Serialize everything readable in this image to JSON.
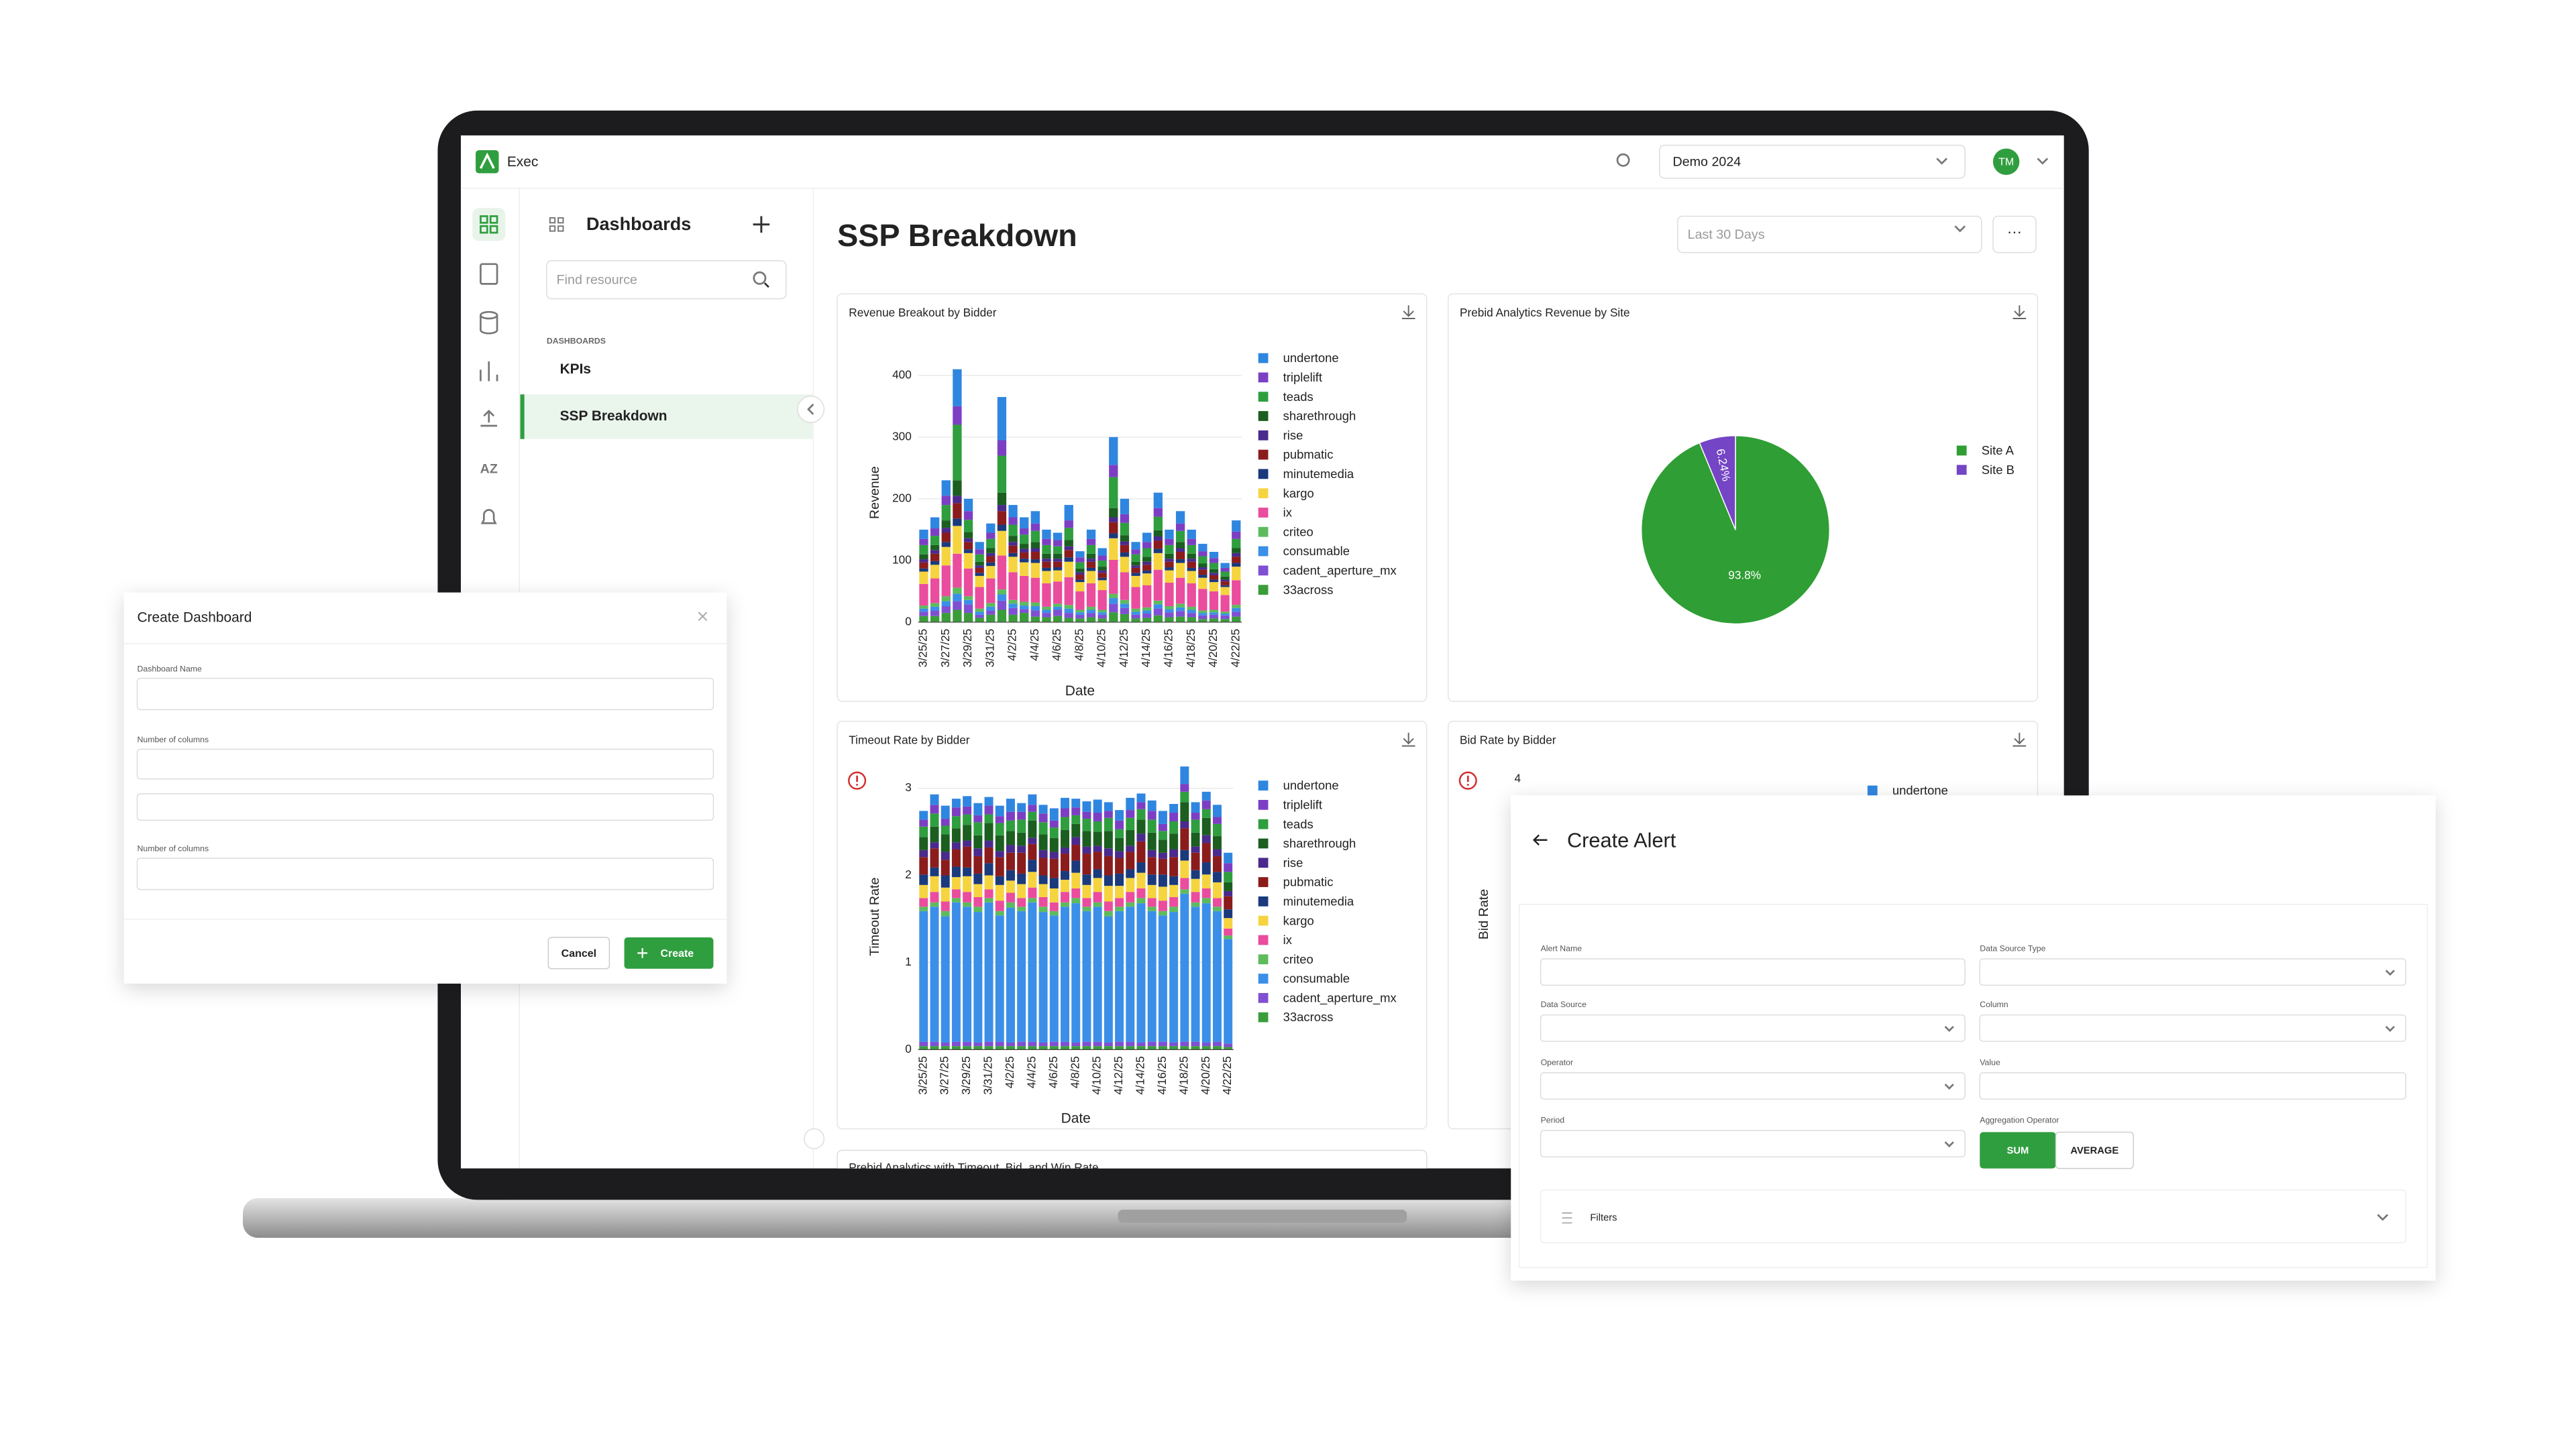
{
  "app": {
    "name": "Exec",
    "workspace": "Demo 2024",
    "avatar": "TM"
  },
  "sidebar": {
    "title": "Dashboards",
    "search_placeholder": "Find resource",
    "section": "DASHBOARDS",
    "items": [
      "KPIs",
      "SSP Breakdown"
    ],
    "rail_label": "AZ"
  },
  "page": {
    "title": "SSP Breakdown",
    "date_range": "Last 30 Days",
    "menu": "···",
    "next_card": "Prebid Analytics with Timeout, Bid, and Win Rate"
  },
  "chart_data": [
    {
      "type": "bar",
      "stacked": true,
      "title": "Revenue Breakout by Bidder",
      "x_label": "Date",
      "y_label": "Revenue",
      "categories": [
        "3/25/25",
        null,
        "3/27/25",
        null,
        "3/29/25",
        null,
        "3/31/25",
        null,
        "4/2/25",
        null,
        "4/4/25",
        null,
        "4/6/25",
        null,
        "4/8/25",
        null,
        "4/10/25",
        null,
        "4/12/25",
        null,
        "4/14/25",
        null,
        "4/16/25",
        null,
        "4/18/25",
        null,
        "4/20/25",
        null,
        "4/22/25"
      ],
      "ylim": [
        0,
        420
      ],
      "yticks": [
        0,
        100,
        200,
        300,
        400
      ],
      "grid": true,
      "series": [
        {
          "name": "undertone",
          "color": "#2f86e0",
          "values": [
            15,
            18,
            25,
            60,
            20,
            12,
            15,
            70,
            20,
            18,
            20,
            15,
            12,
            25,
            10,
            15,
            12,
            45,
            25,
            12,
            15,
            25,
            15,
            20,
            15,
            12,
            10,
            8,
            18
          ]
        },
        {
          "name": "triplelift",
          "color": "#7c3fc4",
          "values": [
            10,
            12,
            15,
            30,
            14,
            8,
            10,
            25,
            12,
            10,
            12,
            10,
            10,
            12,
            8,
            10,
            8,
            20,
            14,
            8,
            10,
            14,
            10,
            12,
            10,
            8,
            8,
            6,
            12
          ]
        },
        {
          "name": "teads",
          "color": "#2f9e3f",
          "values": [
            15,
            15,
            25,
            90,
            20,
            12,
            15,
            60,
            18,
            15,
            18,
            14,
            12,
            20,
            10,
            14,
            10,
            50,
            20,
            12,
            14,
            22,
            14,
            18,
            14,
            12,
            10,
            8,
            15
          ]
        },
        {
          "name": "sharethrough",
          "color": "#1b5e20",
          "values": [
            8,
            8,
            12,
            25,
            10,
            6,
            8,
            20,
            10,
            8,
            10,
            8,
            8,
            10,
            6,
            8,
            6,
            15,
            10,
            6,
            8,
            10,
            8,
            10,
            8,
            6,
            6,
            5,
            8
          ]
        },
        {
          "name": "rise",
          "color": "#4a2a8c",
          "values": [
            5,
            6,
            8,
            12,
            6,
            4,
            5,
            10,
            6,
            6,
            6,
            5,
            5,
            6,
            4,
            5,
            4,
            8,
            6,
            4,
            5,
            7,
            5,
            6,
            5,
            4,
            4,
            3,
            6
          ]
        },
        {
          "name": "pubmatic",
          "color": "#8b1c1c",
          "values": [
            10,
            12,
            15,
            25,
            12,
            8,
            10,
            22,
            12,
            10,
            12,
            10,
            9,
            12,
            8,
            10,
            8,
            18,
            12,
            8,
            9,
            13,
            9,
            12,
            10,
            8,
            7,
            6,
            10
          ]
        },
        {
          "name": "minutemedia",
          "color": "#1a3a7c",
          "values": [
            5,
            6,
            8,
            12,
            6,
            5,
            6,
            10,
            6,
            6,
            6,
            5,
            5,
            7,
            4,
            5,
            4,
            8,
            7,
            5,
            5,
            7,
            5,
            6,
            5,
            5,
            4,
            3,
            6
          ]
        },
        {
          "name": "kargo",
          "color": "#f6d43f",
          "values": [
            20,
            22,
            30,
            45,
            25,
            18,
            20,
            40,
            25,
            22,
            24,
            20,
            18,
            25,
            15,
            20,
            16,
            35,
            25,
            18,
            19,
            27,
            20,
            24,
            20,
            18,
            15,
            13,
            22
          ]
        },
        {
          "name": "ix",
          "color": "#ea4c9e",
          "values": [
            35,
            40,
            50,
            55,
            45,
            35,
            40,
            55,
            45,
            42,
            40,
            38,
            36,
            45,
            30,
            38,
            32,
            55,
            45,
            35,
            36,
            50,
            38,
            42,
            38,
            35,
            30,
            27,
            40
          ]
        },
        {
          "name": "criteo",
          "color": "#5dbb5d",
          "values": [
            5,
            6,
            8,
            10,
            6,
            5,
            6,
            8,
            6,
            6,
            6,
            5,
            5,
            6,
            4,
            5,
            4,
            7,
            6,
            5,
            5,
            6,
            5,
            6,
            5,
            4,
            4,
            3,
            5
          ]
        },
        {
          "name": "consumable",
          "color": "#3b8fe8",
          "values": [
            5,
            6,
            8,
            12,
            7,
            5,
            6,
            10,
            7,
            6,
            7,
            5,
            5,
            7,
            4,
            5,
            4,
            9,
            7,
            5,
            5,
            7,
            5,
            6,
            5,
            4,
            4,
            3,
            6
          ]
        },
        {
          "name": "cadent_aperture_mx",
          "color": "#7f50d2",
          "values": [
            7,
            9,
            11,
            14,
            14,
            5,
            7,
            15,
            11,
            6,
            10,
            7,
            10,
            8,
            6,
            7,
            6,
            14,
            10,
            6,
            7,
            11,
            8,
            9,
            7,
            6,
            6,
            6,
            8
          ]
        },
        {
          "name": "33across",
          "color": "#3a9d3a",
          "values": [
            10,
            10,
            15,
            20,
            15,
            7,
            12,
            20,
            12,
            15,
            9,
            8,
            10,
            7,
            6,
            8,
            6,
            16,
            13,
            6,
            7,
            11,
            8,
            9,
            8,
            5,
            6,
            5,
            9
          ]
        }
      ]
    },
    {
      "type": "pie",
      "title": "Prebid Analytics Revenue by Site",
      "categories": [
        "Site A",
        "Site B"
      ],
      "values": [
        93.8,
        6.24
      ],
      "value_labels": [
        "93.8%",
        "6.24%"
      ],
      "colors": [
        "#2f9e34",
        "#7445c4"
      ]
    },
    {
      "type": "bar",
      "stacked": true,
      "title": "Timeout Rate by Bidder",
      "x_label": "Date",
      "y_label": "Timeout Rate",
      "warning": true,
      "categories": [
        "3/25/25",
        null,
        "3/27/25",
        null,
        "3/29/25",
        null,
        "3/31/25",
        null,
        "4/2/25",
        null,
        "4/4/25",
        null,
        "4/6/25",
        null,
        "4/8/25",
        null,
        "4/10/25",
        null,
        "4/12/25",
        null,
        "4/14/25",
        null,
        "4/16/25",
        null,
        "4/18/25",
        null,
        "4/20/25",
        null,
        "4/22/25"
      ],
      "ylim": [
        0,
        3.05
      ],
      "yticks": [
        0,
        1,
        2,
        3
      ],
      "grid": true,
      "series": [
        {
          "name": "undertone",
          "color": "#2f86e0",
          "values": [
            0.1,
            0.12,
            0.15,
            0.1,
            0.12,
            0.14,
            0.1,
            0.12,
            0.15,
            0.1,
            0.12,
            0.1,
            0.14,
            0.12,
            0.1,
            0.12,
            0.15,
            0.1,
            0.12,
            0.14,
            0.1,
            0.12,
            0.15,
            0.1,
            0.2,
            0.12,
            0.1,
            0.14,
            0.12
          ]
        },
        {
          "name": "triplelift",
          "color": "#7c3fc4",
          "values": [
            0.08,
            0.1,
            0.08,
            0.1,
            0.09,
            0.08,
            0.1,
            0.08,
            0.1,
            0.09,
            0.08,
            0.1,
            0.08,
            0.1,
            0.09,
            0.08,
            0.1,
            0.08,
            0.1,
            0.09,
            0.08,
            0.1,
            0.08,
            0.1,
            0.09,
            0.08,
            0.1,
            0.08,
            0.1
          ]
        },
        {
          "name": "teads",
          "color": "#2f9e3f",
          "values": [
            0.12,
            0.15,
            0.1,
            0.14,
            0.12,
            0.15,
            0.1,
            0.14,
            0.12,
            0.15,
            0.1,
            0.14,
            0.12,
            0.15,
            0.1,
            0.14,
            0.12,
            0.15,
            0.1,
            0.14,
            0.12,
            0.15,
            0.1,
            0.14,
            0.12,
            0.15,
            0.1,
            0.14,
            0.12
          ]
        },
        {
          "name": "sharethrough",
          "color": "#1b5e20",
          "values": [
            0.15,
            0.18,
            0.2,
            0.16,
            0.18,
            0.15,
            0.2,
            0.18,
            0.16,
            0.15,
            0.2,
            0.18,
            0.16,
            0.2,
            0.15,
            0.18,
            0.16,
            0.2,
            0.15,
            0.18,
            0.16,
            0.2,
            0.15,
            0.18,
            0.22,
            0.16,
            0.2,
            0.15,
            0.1
          ]
        },
        {
          "name": "rise",
          "color": "#4a2a8c",
          "values": [
            0.08,
            0.07,
            0.09,
            0.08,
            0.07,
            0.09,
            0.08,
            0.07,
            0.09,
            0.08,
            0.07,
            0.09,
            0.08,
            0.07,
            0.09,
            0.08,
            0.07,
            0.09,
            0.08,
            0.07,
            0.09,
            0.08,
            0.07,
            0.09,
            0.08,
            0.07,
            0.09,
            0.08,
            0.06
          ]
        },
        {
          "name": "pubmatic",
          "color": "#8b1c1c",
          "values": [
            0.2,
            0.22,
            0.18,
            0.2,
            0.24,
            0.2,
            0.18,
            0.22,
            0.2,
            0.24,
            0.18,
            0.2,
            0.22,
            0.2,
            0.18,
            0.24,
            0.2,
            0.22,
            0.18,
            0.2,
            0.24,
            0.2,
            0.18,
            0.22,
            0.25,
            0.2,
            0.22,
            0.18,
            0.15
          ]
        },
        {
          "name": "minutemedia",
          "color": "#1a3a7c",
          "values": [
            0.12,
            0.1,
            0.14,
            0.12,
            0.1,
            0.12,
            0.14,
            0.1,
            0.12,
            0.12,
            0.14,
            0.1,
            0.12,
            0.1,
            0.14,
            0.12,
            0.1,
            0.12,
            0.14,
            0.1,
            0.12,
            0.12,
            0.14,
            0.1,
            0.12,
            0.1,
            0.14,
            0.12,
            0.1
          ]
        },
        {
          "name": "kargo",
          "color": "#f6d43f",
          "values": [
            0.15,
            0.18,
            0.16,
            0.14,
            0.18,
            0.15,
            0.16,
            0.18,
            0.14,
            0.16,
            0.18,
            0.15,
            0.16,
            0.14,
            0.18,
            0.15,
            0.16,
            0.18,
            0.14,
            0.16,
            0.18,
            0.15,
            0.16,
            0.14,
            0.2,
            0.15,
            0.16,
            0.18,
            0.12
          ]
        },
        {
          "name": "ix",
          "color": "#ea4c9e",
          "values": [
            0.1,
            0.12,
            0.11,
            0.1,
            0.12,
            0.11,
            0.1,
            0.12,
            0.11,
            0.1,
            0.12,
            0.11,
            0.1,
            0.12,
            0.11,
            0.1,
            0.12,
            0.11,
            0.1,
            0.12,
            0.11,
            0.1,
            0.12,
            0.11,
            0.13,
            0.12,
            0.11,
            0.1,
            0.08
          ]
        },
        {
          "name": "criteo",
          "color": "#5dbb5d",
          "values": [
            0.05,
            0.05,
            0.06,
            0.05,
            0.05,
            0.06,
            0.05,
            0.05,
            0.06,
            0.05,
            0.05,
            0.06,
            0.05,
            0.05,
            0.06,
            0.05,
            0.05,
            0.06,
            0.05,
            0.05,
            0.06,
            0.05,
            0.05,
            0.06,
            0.05,
            0.05,
            0.06,
            0.05,
            0.04
          ]
        },
        {
          "name": "consumable",
          "color": "#3b8fe8",
          "values": [
            1.5,
            1.55,
            1.45,
            1.6,
            1.55,
            1.5,
            1.6,
            1.45,
            1.55,
            1.5,
            1.6,
            1.5,
            1.45,
            1.55,
            1.6,
            1.5,
            1.55,
            1.45,
            1.5,
            1.55,
            1.6,
            1.5,
            1.45,
            1.5,
            1.7,
            1.55,
            1.6,
            1.5,
            1.2
          ]
        },
        {
          "name": "cadent_aperture_mx",
          "color": "#7f50d2",
          "values": [
            0.05,
            0.05,
            0.04,
            0.05,
            0.05,
            0.04,
            0.05,
            0.05,
            0.04,
            0.05,
            0.05,
            0.04,
            0.05,
            0.05,
            0.04,
            0.05,
            0.05,
            0.04,
            0.05,
            0.05,
            0.04,
            0.05,
            0.05,
            0.04,
            0.05,
            0.05,
            0.04,
            0.05,
            0.04
          ]
        },
        {
          "name": "33across",
          "color": "#3a9d3a",
          "values": [
            0.04,
            0.04,
            0.04,
            0.04,
            0.04,
            0.04,
            0.04,
            0.04,
            0.04,
            0.04,
            0.04,
            0.04,
            0.04,
            0.04,
            0.04,
            0.04,
            0.04,
            0.04,
            0.04,
            0.04,
            0.04,
            0.04,
            0.04,
            0.04,
            0.04,
            0.04,
            0.04,
            0.04,
            0.03
          ]
        }
      ]
    },
    {
      "type": "bar",
      "stacked": true,
      "title": "Bid Rate by Bidder",
      "y_label": "Bid Rate",
      "warning": true,
      "yticks": [
        4
      ],
      "series": [
        {
          "name": "undertone",
          "color": "#2f86e0"
        }
      ]
    }
  ],
  "create_dashboard": {
    "title": "Create Dashboard",
    "fields": [
      "Dashboard Name",
      "Number of columns",
      "Number of columns"
    ],
    "cancel": "Cancel",
    "create": "Create"
  },
  "create_alert": {
    "title": "Create Alert",
    "fields": [
      "Alert Name",
      "Data Source Type",
      "Data Source",
      "Column",
      "Operator",
      "Value",
      "Period",
      "Aggregation Operator"
    ],
    "toggle": [
      "SUM",
      "AVERAGE"
    ],
    "filters": "Filters"
  }
}
